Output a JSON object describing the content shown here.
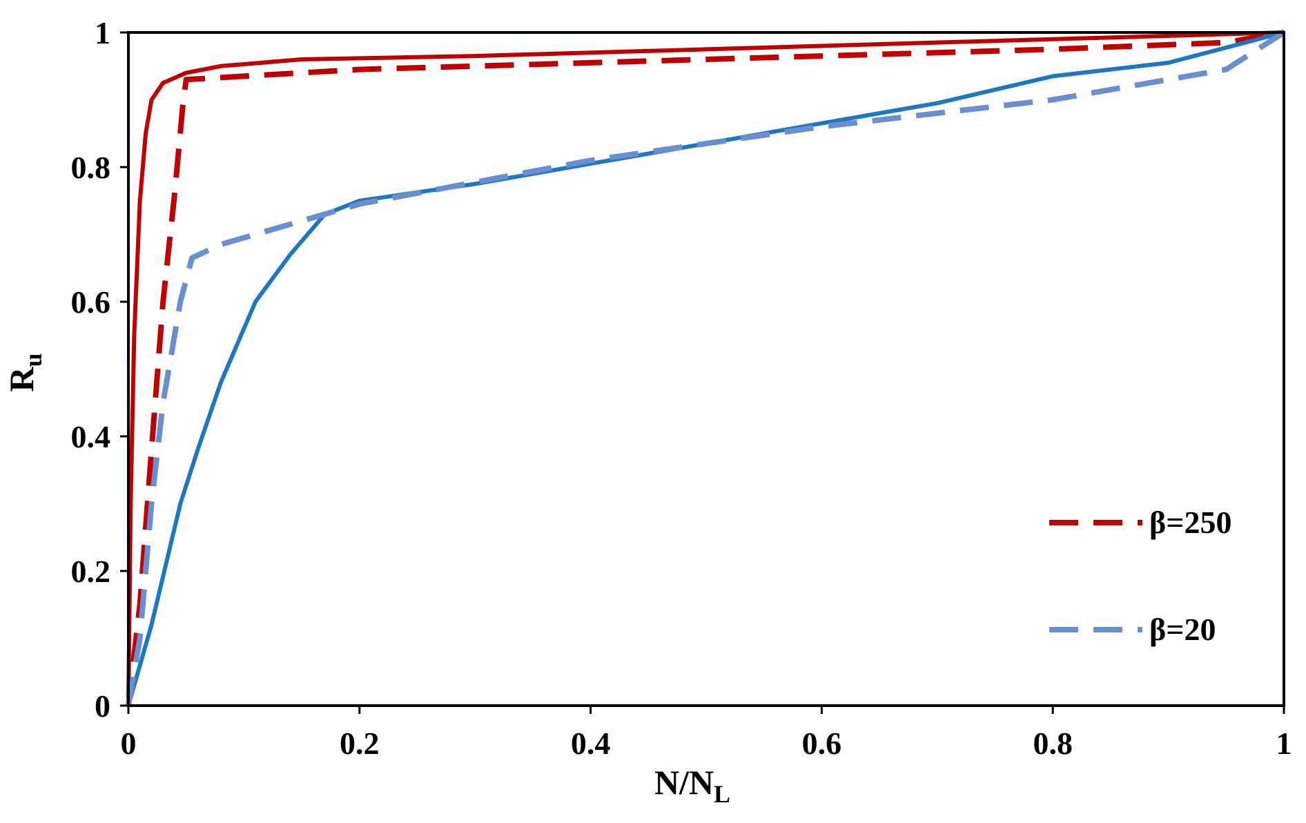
{
  "chart_data": {
    "type": "line",
    "xlabel": "N/NL",
    "xlabel_main": "N/N",
    "xlabel_sub": "L",
    "ylabel": "Ru",
    "ylabel_main": "R",
    "ylabel_sub": "u",
    "xlim": [
      0,
      1
    ],
    "ylim": [
      0,
      1
    ],
    "x_ticks": [
      0,
      0.2,
      0.4,
      0.6,
      0.8,
      1
    ],
    "x_tick_labels": [
      "0",
      "0.2",
      "0.4",
      "0.6",
      "0.8",
      "1"
    ],
    "y_ticks": [
      0,
      0.2,
      0.4,
      0.6,
      0.8,
      1
    ],
    "y_tick_labels": [
      "0",
      "0.2",
      "0.4",
      "0.6",
      "0.8",
      "1"
    ],
    "grid": false,
    "legend_position": "lower-right",
    "series": [
      {
        "id": "red-solid",
        "color": "#c00000",
        "dash": "solid",
        "points": [
          [
            0,
            0
          ],
          [
            0.002,
            0.3
          ],
          [
            0.005,
            0.55
          ],
          [
            0.01,
            0.75
          ],
          [
            0.015,
            0.85
          ],
          [
            0.02,
            0.9
          ],
          [
            0.03,
            0.925
          ],
          [
            0.05,
            0.94
          ],
          [
            0.08,
            0.95
          ],
          [
            0.15,
            0.96
          ],
          [
            0.3,
            0.965
          ],
          [
            0.5,
            0.975
          ],
          [
            0.7,
            0.985
          ],
          [
            0.9,
            0.995
          ],
          [
            1,
            1
          ]
        ]
      },
      {
        "id": "red-dashed",
        "name": "β=250",
        "color": "#c00000",
        "dash": "dashed",
        "points": [
          [
            0,
            0
          ],
          [
            0.01,
            0.15
          ],
          [
            0.02,
            0.38
          ],
          [
            0.03,
            0.6
          ],
          [
            0.04,
            0.76
          ],
          [
            0.047,
            0.89
          ],
          [
            0.05,
            0.93
          ],
          [
            0.1,
            0.935
          ],
          [
            0.2,
            0.945
          ],
          [
            0.4,
            0.955
          ],
          [
            0.6,
            0.965
          ],
          [
            0.8,
            0.975
          ],
          [
            0.95,
            0.985
          ],
          [
            1,
            1
          ]
        ]
      },
      {
        "id": "blue-solid",
        "color": "#1f77c4",
        "dash": "solid",
        "points": [
          [
            0,
            0
          ],
          [
            0.02,
            0.12
          ],
          [
            0.045,
            0.3
          ],
          [
            0.06,
            0.38
          ],
          [
            0.08,
            0.48
          ],
          [
            0.11,
            0.6
          ],
          [
            0.14,
            0.67
          ],
          [
            0.17,
            0.73
          ],
          [
            0.2,
            0.75
          ],
          [
            0.3,
            0.775
          ],
          [
            0.4,
            0.805
          ],
          [
            0.5,
            0.835
          ],
          [
            0.6,
            0.865
          ],
          [
            0.7,
            0.895
          ],
          [
            0.8,
            0.935
          ],
          [
            0.9,
            0.955
          ],
          [
            1,
            1
          ]
        ]
      },
      {
        "id": "blue-dashed",
        "name": "β=20",
        "color": "#6a8fd0",
        "dash": "dashed",
        "points": [
          [
            0,
            0
          ],
          [
            0.01,
            0.1
          ],
          [
            0.02,
            0.3
          ],
          [
            0.03,
            0.45
          ],
          [
            0.045,
            0.6
          ],
          [
            0.055,
            0.665
          ],
          [
            0.08,
            0.685
          ],
          [
            0.15,
            0.72
          ],
          [
            0.2,
            0.745
          ],
          [
            0.4,
            0.81
          ],
          [
            0.6,
            0.86
          ],
          [
            0.8,
            0.9
          ],
          [
            0.95,
            0.945
          ],
          [
            1,
            1
          ]
        ]
      }
    ]
  }
}
